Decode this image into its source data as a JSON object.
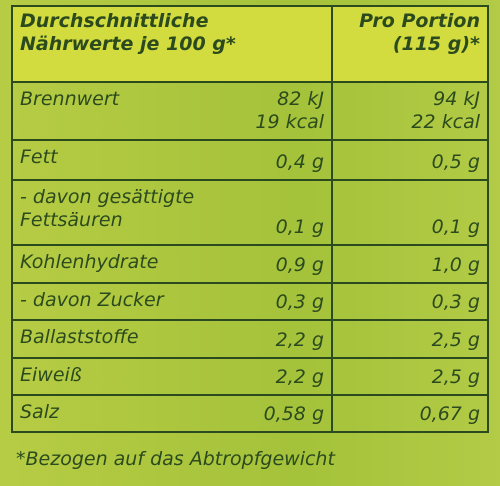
{
  "header": {
    "left": [
      "Durchschnittliche",
      "Nährwerte je 100 g*"
    ],
    "right": [
      "Pro Portion",
      "(115 g)*"
    ]
  },
  "rows": [
    {
      "label": [
        "Brennwert"
      ],
      "per_100g": [
        "82 kJ",
        "19 kcal"
      ],
      "portion": [
        "94 kJ",
        "22 kcal"
      ]
    },
    {
      "label": [
        "Fett"
      ],
      "per_100g": [
        "0,4 g"
      ],
      "portion": [
        "0,5 g"
      ]
    },
    {
      "label": [
        "- davon gesättigte",
        "Fettsäuren"
      ],
      "per_100g": [
        "0,1 g"
      ],
      "portion": [
        "0,1 g"
      ]
    },
    {
      "label": [
        "Kohlenhydrate"
      ],
      "per_100g": [
        "0,9 g"
      ],
      "portion": [
        "1,0 g"
      ]
    },
    {
      "label": [
        "- davon Zucker"
      ],
      "per_100g": [
        "0,3 g"
      ],
      "portion": [
        "0,3 g"
      ]
    },
    {
      "label": [
        "Ballaststoffe"
      ],
      "per_100g": [
        "2,2 g"
      ],
      "portion": [
        "2,5 g"
      ]
    },
    {
      "label": [
        "Eiweiß"
      ],
      "per_100g": [
        "2,2 g"
      ],
      "portion": [
        "2,5 g"
      ]
    },
    {
      "label": [
        "Salz"
      ],
      "per_100g": [
        "0,58 g"
      ],
      "portion": [
        "0,67 g"
      ]
    }
  ],
  "footnote": "*Bezogen auf das Abtropfgewicht"
}
